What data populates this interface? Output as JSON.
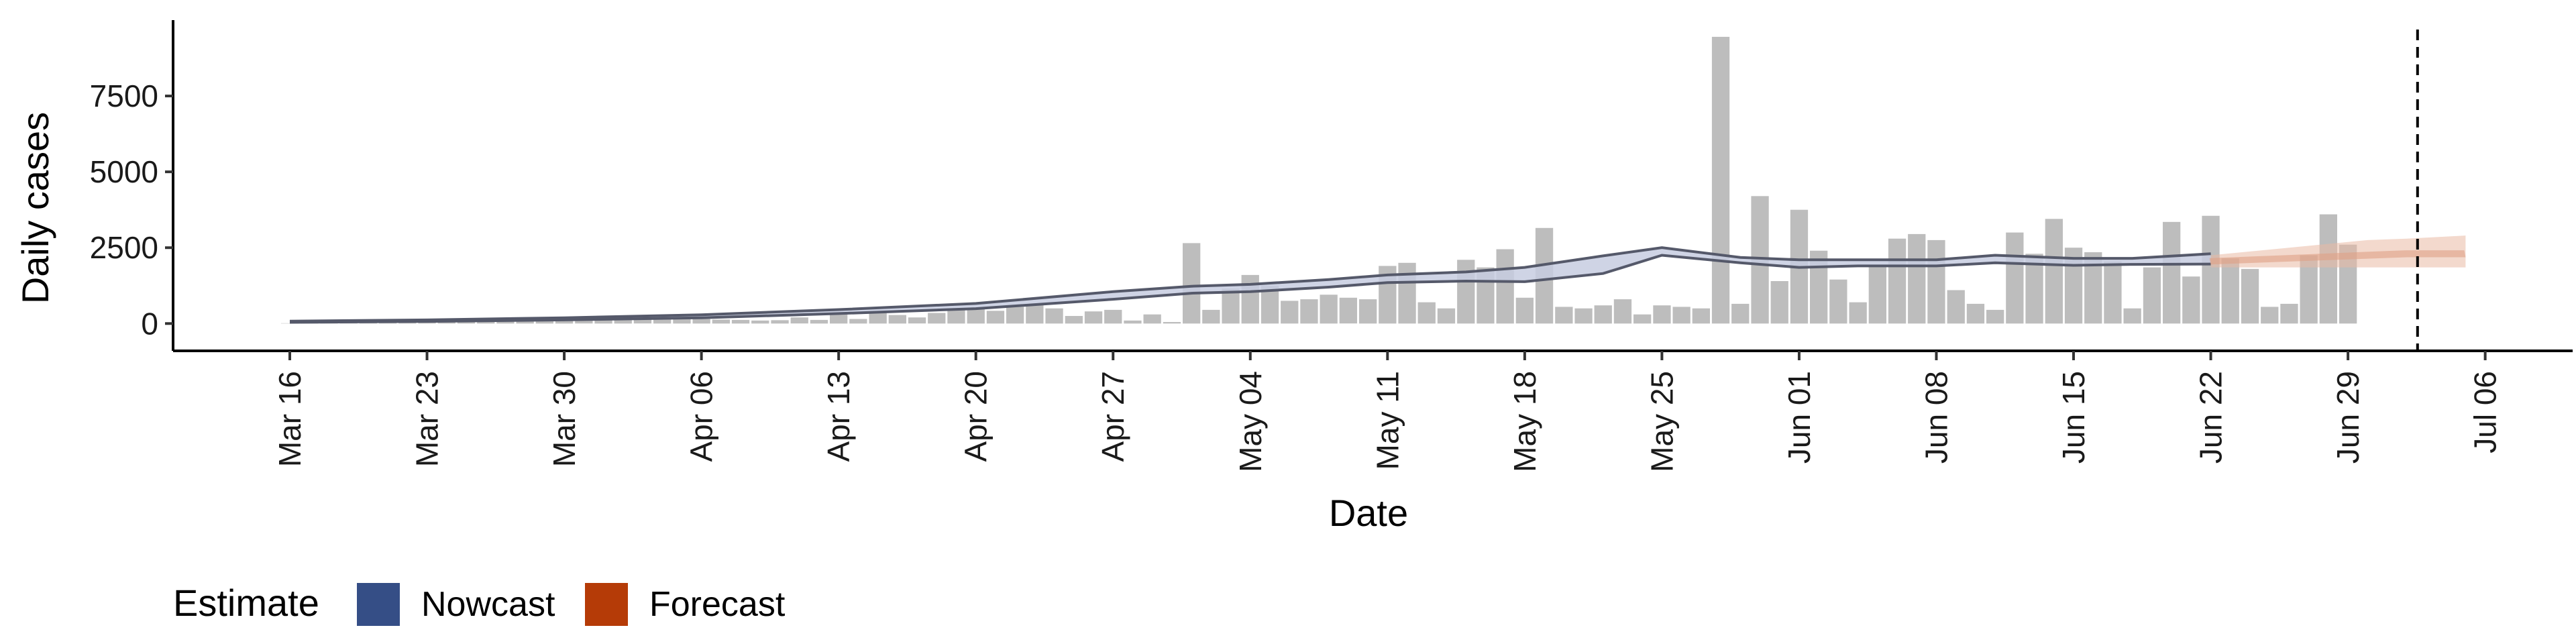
{
  "chart_data": {
    "type": "bar",
    "xlabel": "Date",
    "ylabel": "Daily cases",
    "ylim": [
      -900,
      10000
    ],
    "y_ticks": [
      0,
      2500,
      5000,
      7500
    ],
    "y_tick_labels": [
      "0",
      "2500",
      "5000",
      "7500"
    ],
    "x_ticks": [
      "2020-03-16",
      "2020-03-23",
      "2020-03-30",
      "2020-04-06",
      "2020-04-13",
      "2020-04-20",
      "2020-04-27",
      "2020-05-04",
      "2020-05-11",
      "2020-05-18",
      "2020-05-25",
      "2020-06-01",
      "2020-06-08",
      "2020-06-15",
      "2020-06-22",
      "2020-06-29",
      "2020-07-06"
    ],
    "x_tick_labels": [
      "Mar 16",
      "Mar 23",
      "Mar 30",
      "Apr 06",
      "Apr 13",
      "Apr 20",
      "Apr 27",
      "May 04",
      "May 11",
      "May 18",
      "May 25",
      "Jun 01",
      "Jun 08",
      "Jun 15",
      "Jun 22",
      "Jun 29",
      "Jul 06"
    ],
    "grid": false,
    "reference_line_date": "2020-07-02",
    "bars": {
      "start_date": "2020-03-16",
      "color": "#bdbdbd",
      "values": [
        10,
        20,
        30,
        40,
        50,
        60,
        70,
        80,
        90,
        100,
        120,
        140,
        150,
        170,
        190,
        200,
        150,
        250,
        200,
        160,
        180,
        150,
        130,
        120,
        100,
        110,
        200,
        120,
        300,
        150,
        400,
        280,
        200,
        350,
        450,
        500,
        420,
        550,
        650,
        500,
        250,
        400,
        450,
        100,
        300,
        50,
        2650,
        450,
        1150,
        1600,
        1250,
        750,
        800,
        950,
        850,
        800,
        1900,
        2000,
        700,
        500,
        2100,
        1850,
        2450,
        850,
        3150,
        550,
        500,
        600,
        800,
        300,
        600,
        550,
        500,
        9450,
        650,
        4200,
        1400,
        3750,
        2400,
        1450,
        700,
        1900,
        2800,
        2950,
        2750,
        1100,
        650,
        450,
        3000,
        2300,
        3450,
        2500,
        2350,
        2050,
        500,
        1850,
        3350,
        1550,
        3550,
        2150,
        1800,
        550,
        650,
        2250,
        3600,
        2600
      ]
    },
    "series": [
      {
        "name": "Nowcast",
        "color": "#3a4d7e",
        "start_date": "2020-03-16",
        "end_date": "2020-06-22",
        "x": [
          "2020-03-16",
          "2020-03-23",
          "2020-03-30",
          "2020-04-06",
          "2020-04-13",
          "2020-04-20",
          "2020-04-27",
          "2020-05-01",
          "2020-05-04",
          "2020-05-08",
          "2020-05-11",
          "2020-05-15",
          "2020-05-18",
          "2020-05-22",
          "2020-05-25",
          "2020-05-29",
          "2020-06-01",
          "2020-06-04",
          "2020-06-08",
          "2020-06-11",
          "2020-06-15",
          "2020-06-18",
          "2020-06-22"
        ],
        "lower": [
          40,
          70,
          120,
          190,
          330,
          490,
          800,
          1000,
          1050,
          1200,
          1350,
          1400,
          1380,
          1650,
          2250,
          2000,
          1850,
          1900,
          1900,
          2000,
          1920,
          1950,
          1960
        ],
        "upper": [
          80,
          120,
          190,
          290,
          460,
          660,
          1050,
          1230,
          1290,
          1450,
          1600,
          1700,
          1850,
          2230,
          2500,
          2180,
          2100,
          2100,
          2100,
          2250,
          2150,
          2150,
          2300
        ]
      },
      {
        "name": "Forecast",
        "color": "#b83a0e",
        "start_date": "2020-06-22",
        "end_date": "2020-07-05",
        "x": [
          "2020-06-22",
          "2020-06-26",
          "2020-06-30",
          "2020-07-02",
          "2020-07-05"
        ],
        "lower": [
          1850,
          1850,
          1850,
          1850,
          1850
        ],
        "upper": [
          2250,
          2500,
          2750,
          2800,
          2900
        ],
        "mid": [
          2050,
          2150,
          2250,
          2300,
          2300
        ]
      }
    ],
    "legend": {
      "title": "Estimate",
      "position": "bottom-left",
      "items": [
        {
          "label": "Nowcast",
          "color": "#354e86"
        },
        {
          "label": "Forecast",
          "color": "#b53b07"
        }
      ]
    }
  }
}
